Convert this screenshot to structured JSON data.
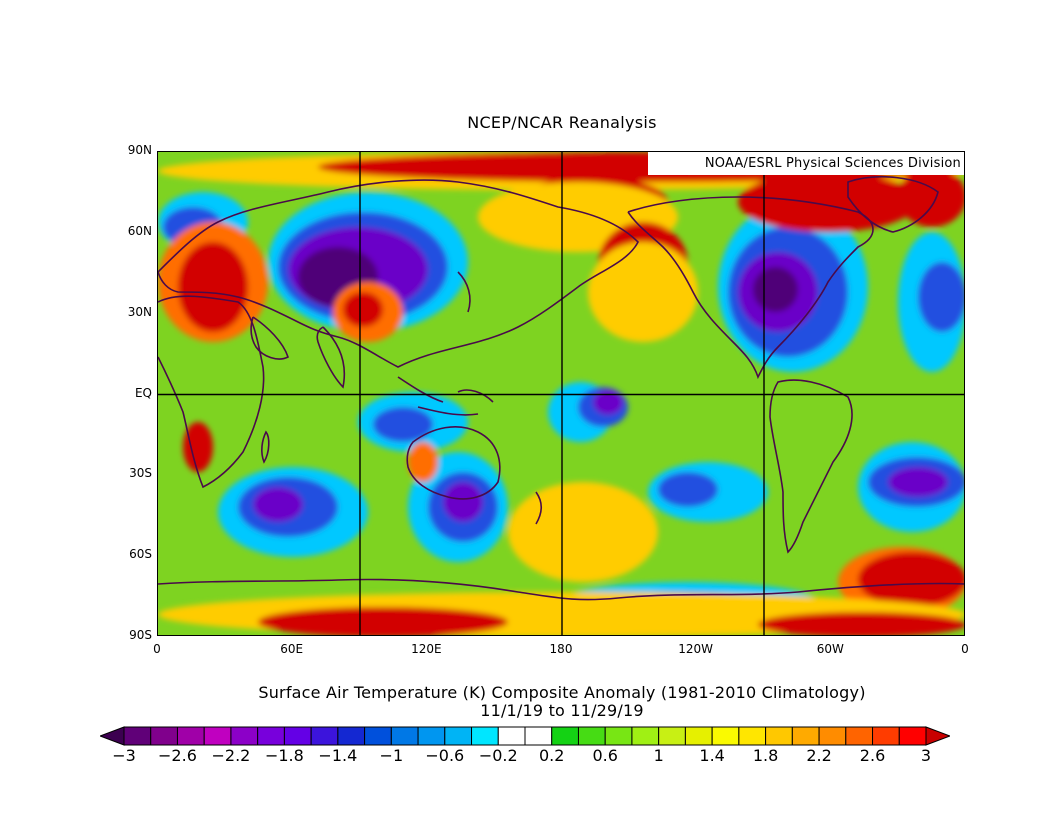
{
  "title": "NCEP/NCAR Reanalysis",
  "credit": "NOAA/ESRL Physical Sciences Division",
  "caption_line1": "Surface Air Temperature (K) Composite Anomaly (1981-2010 Climatology)",
  "caption_line2": "11/1/19  to 11/29/19",
  "lat_labels": [
    "90N",
    "60N",
    "30N",
    "EQ",
    "30S",
    "60S",
    "90S"
  ],
  "lon_labels": [
    "0",
    "60E",
    "120E",
    "180",
    "120W",
    "60W",
    "0"
  ],
  "colorbar": {
    "labels": [
      "-3",
      "-2.6",
      "-2.2",
      "-1.8",
      "-1.4",
      "-1",
      "-0.6",
      "-0.2",
      "0.2",
      "0.6",
      "1",
      "1.4",
      "1.8",
      "2.2",
      "2.6",
      "3"
    ],
    "colors": [
      "#3c0050",
      "#600078",
      "#80008c",
      "#a000a8",
      "#c000c0",
      "#8c00c8",
      "#7800dc",
      "#6400e6",
      "#3c14dc",
      "#1428d2",
      "#0050dc",
      "#0078e6",
      "#0096f0",
      "#00b4f5",
      "#00e6ff",
      "#ffffff",
      "#ffffff",
      "#14d214",
      "#46dc14",
      "#78e614",
      "#a0f014",
      "#c8f014",
      "#e6f000",
      "#fafa00",
      "#ffe600",
      "#ffc800",
      "#ffaa00",
      "#ff8c00",
      "#ff6400",
      "#ff3c00",
      "#ff0000",
      "#c80000"
    ]
  },
  "map_fields": {
    "background_color": "#7ed321",
    "warm_strong": "#d20000",
    "warm": "#ff6e00",
    "warm_light": "#ffcc00",
    "neutral": "#ffffff",
    "cool_light": "#00c8ff",
    "cool": "#2050e0",
    "cool_strong": "#6a00c8",
    "cool_deep": "#500078",
    "coastline_color": "#4a0a4a",
    "grid_color": "#000000"
  }
}
